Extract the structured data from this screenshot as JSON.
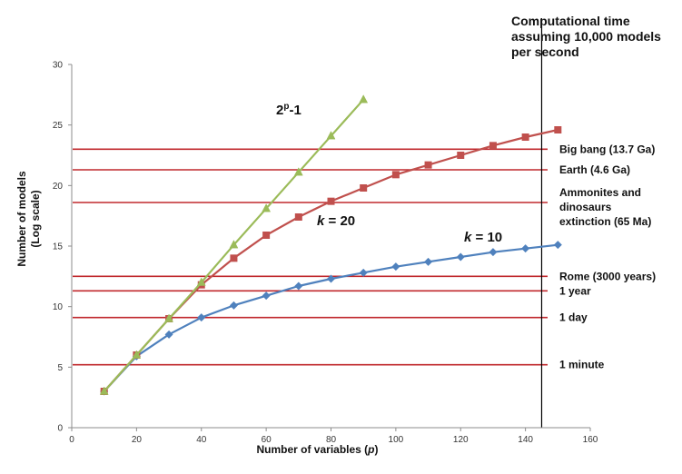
{
  "chart_data": {
    "type": "line",
    "xlabel": "Number of variables (p)",
    "ylabel": "Number of models (Log scale)",
    "ylabel_lines": [
      "Number of models",
      "(Log scale)"
    ],
    "xlim": [
      0,
      160
    ],
    "ylim": [
      0,
      30
    ],
    "xticks": [
      0,
      20,
      40,
      60,
      80,
      100,
      120,
      140,
      160
    ],
    "yticks": [
      0,
      5,
      10,
      15,
      20,
      25,
      30
    ],
    "grid": false,
    "divider_x": 145,
    "annotation_title_lines": [
      "Computational time",
      "assuming 10,000 models",
      "per second"
    ],
    "series": [
      {
        "label_main": "2",
        "label_sup": "p",
        "label_tail": "-1",
        "color": "#9bbb59",
        "marker": "triangle",
        "x": [
          10,
          20,
          30,
          40,
          50,
          60,
          70,
          80,
          90
        ],
        "values": [
          3.0,
          6.0,
          9.0,
          12.0,
          15.1,
          18.1,
          21.1,
          24.1,
          27.1
        ]
      },
      {
        "label_main": "k",
        "label_tail": " = 20",
        "color": "#c0504d",
        "marker": "square",
        "x": [
          10,
          20,
          30,
          40,
          50,
          60,
          70,
          80,
          90,
          100,
          110,
          120,
          130,
          140,
          150
        ],
        "values": [
          3.0,
          6.0,
          9.0,
          11.8,
          14.0,
          15.9,
          17.4,
          18.7,
          19.8,
          20.9,
          21.7,
          22.5,
          23.3,
          24.0,
          24.6
        ]
      },
      {
        "label_main": "k",
        "label_tail": " = 10",
        "color": "#4f81bd",
        "marker": "diamond",
        "x": [
          10,
          20,
          30,
          40,
          50,
          60,
          70,
          80,
          90,
          100,
          110,
          120,
          130,
          140,
          150
        ],
        "values": [
          3.0,
          5.9,
          7.7,
          9.1,
          10.1,
          10.9,
          11.7,
          12.3,
          12.8,
          13.3,
          13.7,
          14.1,
          14.5,
          14.8,
          15.1
        ]
      }
    ],
    "reference_lines": [
      {
        "label": "Big bang (13.7 Ga)",
        "y": 23.0
      },
      {
        "label": "Earth  (4.6 Ga)",
        "y": 21.3
      },
      {
        "label_lines": [
          "Ammonites  and",
          "dinosaurs",
          "extinction (65 Ma)"
        ],
        "y": 18.6
      },
      {
        "label": "Rome (3000 years)",
        "y": 12.5
      },
      {
        "label": "1 year",
        "y": 11.3
      },
      {
        "label": "1 day",
        "y": 9.1
      },
      {
        "label": "1 minute",
        "y": 5.2
      }
    ]
  }
}
